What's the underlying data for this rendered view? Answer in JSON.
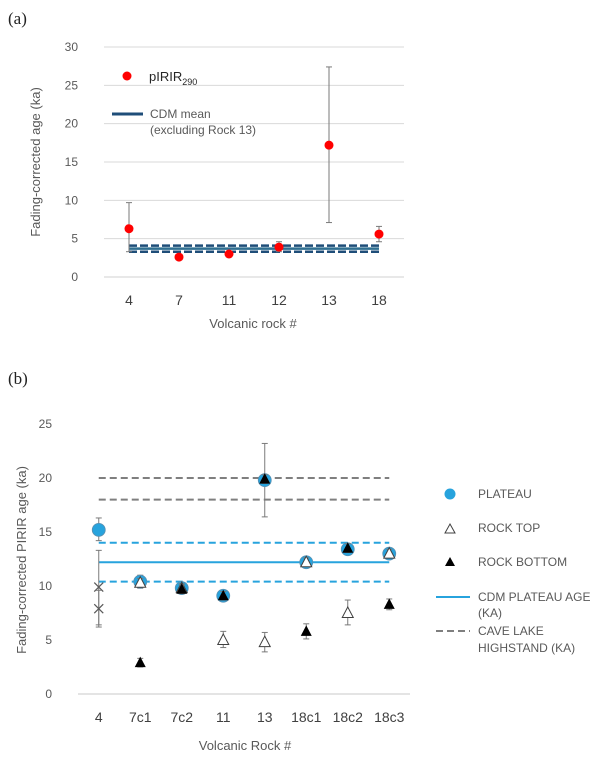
{
  "chart_data": [
    {
      "panel_label": "(a)",
      "type": "scatter",
      "xlabel": "Volcanic rock #",
      "ylabel": "Fading-corrected age (ka)",
      "categories": [
        "4",
        "7",
        "11",
        "12",
        "13",
        "18"
      ],
      "ylim": [
        0,
        30
      ],
      "yticks": [
        "0",
        "5",
        "10",
        "15",
        "20",
        "25",
        "30"
      ],
      "grid": true,
      "legend_position": "top-left",
      "series": [
        {
          "name": "pIRIR290",
          "name_main": "pIRIR",
          "name_sub": "290",
          "color": "#ff0000",
          "marker": "circle",
          "values": [
            6.3,
            2.6,
            3.0,
            3.9,
            17.2,
            5.6
          ],
          "err_low": [
            3.3,
            2.6,
            3.0,
            3.3,
            7.1,
            4.6
          ],
          "err_high": [
            9.7,
            2.6,
            3.0,
            4.6,
            27.4,
            6.6
          ]
        }
      ],
      "reference_lines": [
        {
          "name": "CDM mean",
          "name_line2": "(excluding Rock 13)",
          "value": 3.7,
          "style": "solid",
          "color": "#2f6f91"
        },
        {
          "name": "",
          "value": 4.1,
          "style": "dashed",
          "color": "#1f4e79"
        },
        {
          "name": "",
          "value": 3.3,
          "style": "dashed",
          "color": "#1f4e79"
        }
      ]
    },
    {
      "panel_label": "(b)",
      "type": "scatter",
      "xlabel": "Volcanic Rock #",
      "ylabel": "Fading-corrected PIRIR age (ka)",
      "categories": [
        "4",
        "7c1",
        "7c2",
        "11",
        "13",
        "18c1",
        "18c2",
        "18c3"
      ],
      "ylim": [
        0,
        25
      ],
      "yticks": [
        "0",
        "5",
        "10",
        "15",
        "20",
        "25"
      ],
      "grid": false,
      "legend_position": "right",
      "series": [
        {
          "name": "PLATEAU",
          "color": "#27a3dd",
          "marker": "circle",
          "values": [
            15.2,
            10.4,
            9.8,
            9.1,
            19.8,
            12.2,
            13.4,
            13.0
          ],
          "err_low": [
            14.2,
            9.8,
            9.4,
            8.7,
            16.4,
            11.8,
            13.0,
            12.6
          ],
          "err_high": [
            16.3,
            11.0,
            10.2,
            9.5,
            23.2,
            12.6,
            13.8,
            13.4
          ]
        },
        {
          "name": "ROCK TOP",
          "color": "#ffffff",
          "marker": "triangle-open",
          "values": [
            null,
            10.3,
            9.8,
            5.0,
            4.8,
            12.2,
            7.5,
            13.0
          ],
          "err_low": [
            null,
            9.9,
            9.4,
            4.3,
            3.9,
            11.8,
            6.4,
            12.6
          ],
          "err_high": [
            null,
            10.7,
            10.2,
            5.8,
            5.7,
            12.6,
            8.7,
            13.4
          ]
        },
        {
          "name": "ROCK BOTTOM",
          "color": "#000000",
          "marker": "triangle-filled",
          "values": [
            null,
            2.9,
            9.7,
            9.1,
            19.9,
            5.8,
            13.5,
            8.3
          ],
          "err_low": [
            null,
            2.5,
            9.3,
            8.7,
            19.5,
            5.1,
            13.1,
            7.8
          ],
          "err_high": [
            null,
            3.3,
            10.1,
            9.5,
            20.3,
            6.5,
            13.9,
            8.8
          ]
        },
        {
          "name": "",
          "color": "#595959",
          "marker": "x",
          "values": [
            9.9,
            null,
            null,
            null,
            null,
            null,
            null,
            null
          ],
          "err_low": [
            6.4,
            null,
            null,
            null,
            null,
            null,
            null,
            null
          ],
          "err_high": [
            13.3,
            null,
            null,
            null,
            null,
            null,
            null,
            null
          ]
        },
        {
          "name": "",
          "color": "#595959",
          "marker": "x",
          "values": [
            7.9,
            null,
            null,
            null,
            null,
            null,
            null,
            null
          ],
          "err_low": [
            6.2,
            null,
            null,
            null,
            null,
            null,
            null,
            null
          ],
          "err_high": [
            9.6,
            null,
            null,
            null,
            null,
            null,
            null,
            null
          ]
        }
      ],
      "reference_lines": [
        {
          "name": "CDM PLATEAU AGE",
          "name_line2": "(KA)",
          "value": 12.2,
          "style": "solid",
          "color": "#27a3dd"
        },
        {
          "name": "",
          "value": 14.0,
          "style": "dashed",
          "color": "#27a3dd"
        },
        {
          "name": "",
          "value": 10.4,
          "style": "dashed",
          "color": "#27a3dd"
        },
        {
          "name": "CAVE LAKE",
          "name_line2": "HIGHSTAND (KA)",
          "value": 20.0,
          "style": "dashed",
          "color": "#7f7f7f"
        },
        {
          "name": "",
          "value": 18.0,
          "style": "dashed",
          "color": "#7f7f7f"
        }
      ]
    }
  ]
}
